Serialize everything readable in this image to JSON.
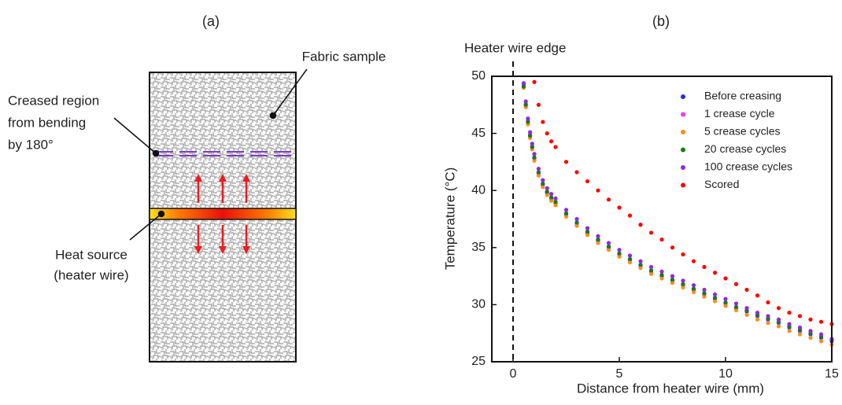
{
  "diagram": {
    "panel_label": "(a)",
    "fabric_label": "Fabric sample",
    "crease_label": [
      "Creased region",
      "from bending",
      "by 180°"
    ],
    "heat_label": [
      "Heat source",
      "(heater wire)"
    ]
  },
  "chart_data": {
    "type": "scatter",
    "title": "(b)",
    "x_label": "Distance from heater wire (mm)",
    "y_label": "Temperature (°C)",
    "annotation": {
      "text": "Heater wire edge",
      "x": 0
    },
    "xlim": [
      -1,
      15
    ],
    "xticks": [
      0,
      5,
      10,
      15
    ],
    "ylim": [
      25,
      50
    ],
    "yticks": [
      25,
      30,
      35,
      40,
      45,
      50
    ],
    "legend": "top-right",
    "x": [
      0.5,
      0.6,
      0.7,
      0.8,
      0.9,
      1.0,
      1.2,
      1.4,
      1.6,
      1.8,
      2,
      2.5,
      3,
      3.5,
      4,
      4.5,
      5,
      5.5,
      6,
      6.5,
      7,
      7.5,
      8,
      8.5,
      9,
      9.5,
      10,
      10.5,
      11,
      11.5,
      12,
      12.5,
      13,
      13.5,
      14,
      14.5,
      15
    ],
    "series": [
      {
        "name": "Before creasing",
        "color": "#1f2ee6",
        "values": [
          49.3,
          47.5,
          46.0,
          44.8,
          43.8,
          42.8,
          41.5,
          40.5,
          39.8,
          39.3,
          38.9,
          37.9,
          37.1,
          36.3,
          35.6,
          35.0,
          34.4,
          33.9,
          33.4,
          32.9,
          32.5,
          32.1,
          31.7,
          31.3,
          30.9,
          30.5,
          30.1,
          29.7,
          29.4,
          29.0,
          28.7,
          28.4,
          28.0,
          27.7,
          27.4,
          27.1,
          26.8
        ]
      },
      {
        "name": "1 crease cycle",
        "color": "#ff33ff",
        "values": [
          49.2,
          47.6,
          46.1,
          44.9,
          43.9,
          42.9,
          41.6,
          40.6,
          39.9,
          39.4,
          39.0,
          38.0,
          37.2,
          36.4,
          35.7,
          35.1,
          34.5,
          34.0,
          33.5,
          33.0,
          32.6,
          32.2,
          31.8,
          31.4,
          31.0,
          30.6,
          30.2,
          29.8,
          29.5,
          29.1,
          28.8,
          28.5,
          28.1,
          27.8,
          27.5,
          27.2,
          26.9
        ]
      },
      {
        "name": "5 crease cycles",
        "color": "#ff8c1a",
        "values": [
          49.0,
          47.3,
          45.8,
          44.6,
          43.6,
          42.6,
          41.3,
          40.3,
          39.6,
          39.1,
          38.7,
          37.7,
          36.9,
          36.1,
          35.4,
          34.8,
          34.2,
          33.7,
          33.2,
          32.7,
          32.3,
          31.9,
          31.5,
          31.1,
          30.7,
          30.3,
          29.9,
          29.5,
          29.1,
          28.7,
          28.4,
          28.1,
          27.7,
          27.4,
          27.1,
          26.8,
          26.5
        ]
      },
      {
        "name": "20 crease cycles",
        "color": "#1a7a1a",
        "values": [
          49.1,
          47.5,
          46.0,
          44.8,
          43.8,
          42.9,
          41.6,
          40.6,
          39.9,
          39.4,
          39.0,
          38.0,
          37.2,
          36.4,
          35.7,
          35.1,
          34.5,
          34.0,
          33.5,
          33.0,
          32.6,
          32.2,
          31.8,
          31.4,
          31.0,
          30.6,
          30.2,
          29.8,
          29.5,
          29.1,
          28.8,
          28.5,
          28.1,
          27.8,
          27.5,
          27.2,
          26.9
        ]
      },
      {
        "name": "100 crease cycles",
        "color": "#8a2be2",
        "values": [
          49.4,
          47.8,
          46.3,
          45.1,
          44.1,
          43.2,
          41.9,
          40.9,
          40.2,
          39.7,
          39.3,
          38.3,
          37.5,
          36.7,
          36.0,
          35.4,
          34.8,
          34.3,
          33.8,
          33.3,
          32.9,
          32.5,
          32.1,
          31.7,
          31.3,
          30.9,
          30.5,
          30.1,
          29.7,
          29.3,
          29.0,
          28.7,
          28.3,
          28.0,
          27.7,
          27.4,
          27.0
        ]
      },
      {
        "name": "Scored",
        "color": "#ff0000",
        "values": [
          null,
          null,
          null,
          null,
          null,
          49.5,
          47.5,
          46.0,
          45.0,
          44.3,
          43.8,
          42.5,
          41.6,
          40.8,
          40.0,
          39.2,
          38.5,
          37.8,
          37.0,
          36.3,
          35.7,
          35.0,
          34.4,
          33.8,
          33.3,
          32.8,
          32.3,
          31.8,
          31.3,
          30.8,
          30.2,
          29.7,
          29.3,
          29.0,
          28.7,
          28.5,
          28.3
        ]
      }
    ]
  }
}
